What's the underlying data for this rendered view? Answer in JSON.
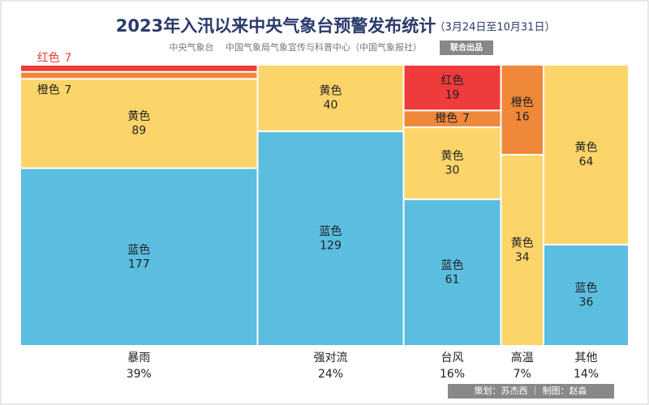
{
  "chart_data": {
    "type": "mekko",
    "title": "2023年入汛以来中央气象台预警发布统计",
    "subtitle": "（3月24日至10月31日）",
    "source": "中央气象台　 中国气象局气象宣传与科普中心（中国气象报社）",
    "badge": "联合出品",
    "credits": "策划：苏杰西 ｜ 制图：赵淼",
    "categories": [
      "暴雨",
      "强对流",
      "台风",
      "高温",
      "其他"
    ],
    "shares": [
      39,
      24,
      16,
      7,
      14
    ],
    "share_labels": [
      "39%",
      "24%",
      "16%",
      "7%",
      "14%"
    ],
    "series": [
      {
        "name": "蓝色",
        "color": "#5bbde0",
        "values": [
          177,
          129,
          61,
          null,
          36
        ]
      },
      {
        "name": "黄色",
        "color": "#fcd56a",
        "values": [
          89,
          40,
          30,
          34,
          64
        ]
      },
      {
        "name": "橙色",
        "color": "#f0883a",
        "values": [
          7,
          null,
          7,
          16,
          null
        ]
      },
      {
        "name": "红色",
        "color": "#ef3b3b",
        "values": [
          7,
          null,
          19,
          null,
          null
        ]
      }
    ]
  }
}
